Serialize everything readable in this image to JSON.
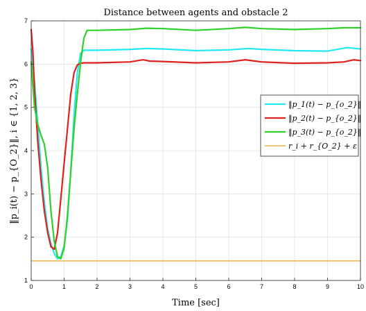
{
  "chart_data": {
    "type": "line",
    "title": "Distance between agents and obstacle 2",
    "xlabel": "Time [sec]",
    "ylabel": "‖p_i(t) − p_{O_2}‖, i ∈ {1, 2, 3}",
    "xlim": [
      0,
      10
    ],
    "ylim": [
      1,
      7
    ],
    "xticks": [
      0,
      1,
      2,
      3,
      4,
      5,
      6,
      7,
      8,
      9,
      10
    ],
    "yticks": [
      1,
      2,
      3,
      4,
      5,
      6,
      7
    ],
    "grid": true,
    "legend_position": "center-right",
    "series": [
      {
        "name": "‖p_1(t) − p_{o_2}‖",
        "color": "#22e8f2",
        "x": [
          0,
          0.1,
          0.2,
          0.3,
          0.4,
          0.5,
          0.6,
          0.7,
          0.8,
          0.9,
          1.0,
          1.1,
          1.2,
          1.3,
          1.4,
          1.5,
          1.6,
          1.8,
          2.0,
          3.0,
          3.5,
          4.0,
          5.0,
          6.0,
          6.6,
          7.0,
          8.0,
          9.0,
          9.6,
          10.0
        ],
        "y": [
          6.35,
          5.6,
          4.6,
          3.6,
          2.8,
          2.2,
          1.85,
          1.62,
          1.5,
          1.55,
          1.8,
          2.4,
          3.5,
          4.8,
          5.8,
          6.25,
          6.32,
          6.32,
          6.32,
          6.34,
          6.36,
          6.35,
          6.31,
          6.33,
          6.36,
          6.34,
          6.31,
          6.3,
          6.38,
          6.35
        ]
      },
      {
        "name": "‖p_2(t) − p_{o_2}‖",
        "color": "#e0201c",
        "x": [
          0,
          0.05,
          0.1,
          0.2,
          0.3,
          0.4,
          0.5,
          0.6,
          0.7,
          0.8,
          0.9,
          1.0,
          1.1,
          1.2,
          1.3,
          1.4,
          1.5,
          1.6,
          2.0,
          3.0,
          3.4,
          3.6,
          4.0,
          5.0,
          6.0,
          6.5,
          6.8,
          7.0,
          8.0,
          9.0,
          9.5,
          9.8,
          10.0
        ],
        "y": [
          6.8,
          6.3,
          5.4,
          4.2,
          3.3,
          2.6,
          2.1,
          1.78,
          1.72,
          2.1,
          2.9,
          3.7,
          4.5,
          5.3,
          5.8,
          5.98,
          6.02,
          6.03,
          6.03,
          6.05,
          6.1,
          6.07,
          6.06,
          6.03,
          6.05,
          6.1,
          6.07,
          6.05,
          6.02,
          6.03,
          6.05,
          6.1,
          6.08
        ]
      },
      {
        "name": "‖p_3(t) − p_{o_2}‖",
        "color": "#2ed12a",
        "x": [
          0,
          0.05,
          0.1,
          0.2,
          0.3,
          0.4,
          0.5,
          0.6,
          0.7,
          0.8,
          0.9,
          1.0,
          1.1,
          1.2,
          1.3,
          1.4,
          1.5,
          1.6,
          1.7,
          2.0,
          3.0,
          3.5,
          4.0,
          5.0,
          6.0,
          6.5,
          7.0,
          8.0,
          9.0,
          9.5,
          10.0
        ],
        "y": [
          6.05,
          5.5,
          5.0,
          4.6,
          4.35,
          4.15,
          3.6,
          2.6,
          1.9,
          1.55,
          1.5,
          1.75,
          2.5,
          3.5,
          4.5,
          5.3,
          6.05,
          6.6,
          6.78,
          6.78,
          6.8,
          6.83,
          6.82,
          6.78,
          6.82,
          6.85,
          6.82,
          6.8,
          6.82,
          6.84,
          6.84
        ]
      },
      {
        "name": "r_i + r_{O_2} + ε",
        "color": "#f0a020",
        "x": [
          0,
          10
        ],
        "y": [
          1.45,
          1.45
        ]
      }
    ]
  }
}
